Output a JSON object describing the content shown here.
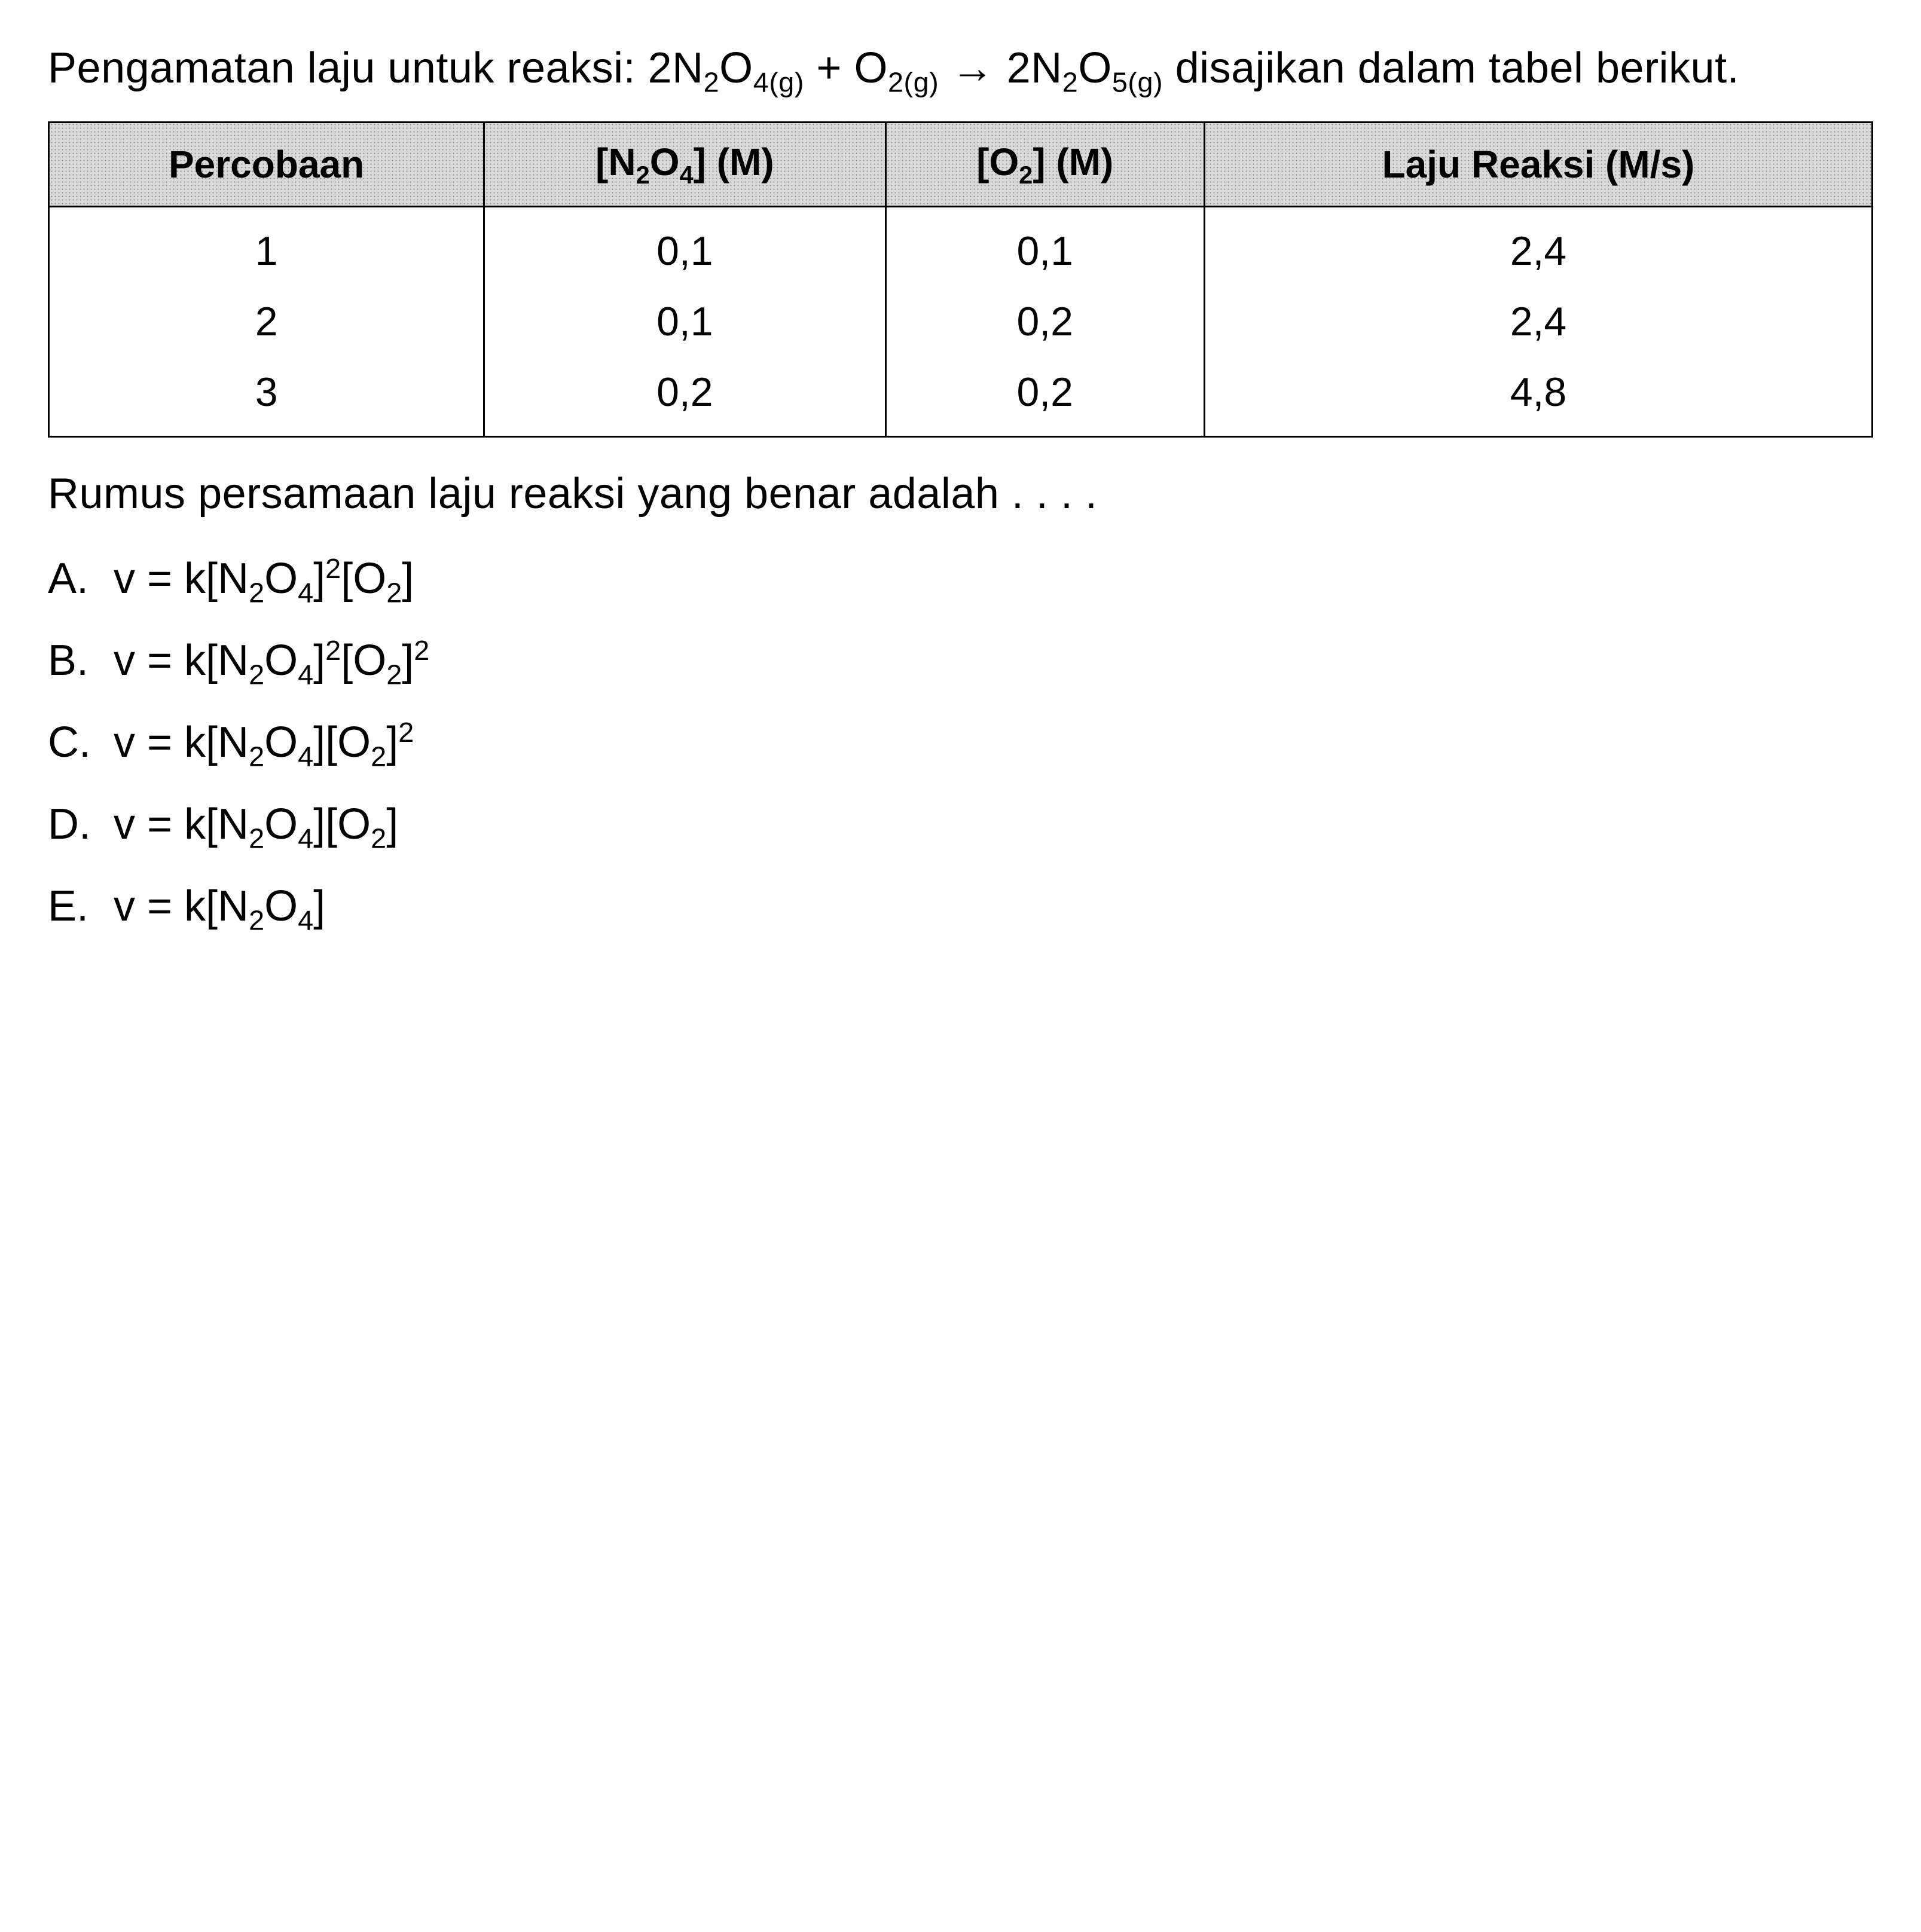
{
  "intro": {
    "line1_a": "Pengamatan laju untuk reaksi: ",
    "reactant1": "2N",
    "r1_sub1": "2",
    "r1_O": "O",
    "r1_sub2": "4(g)",
    "plus": " + ",
    "reactant2": "O",
    "r2_sub": "2(g)",
    "arrow": " → ",
    "product": "2N",
    "p_sub1": "2",
    "p_O": "O",
    "p_sub2": "5(g)",
    "line2_tail": " disajikan dalam tabel berikut."
  },
  "table": {
    "headers": {
      "col1": "Percobaan",
      "col2_a": "[N",
      "col2_s1": "2",
      "col2_b": "O",
      "col2_s2": "4",
      "col2_c": "] (M)",
      "col3_a": "[O",
      "col3_s1": "2",
      "col3_b": "] (M)",
      "col4": "Laju Reaksi (M/s)"
    },
    "rows": [
      {
        "c1": "1",
        "c2": "0,1",
        "c3": "0,1",
        "c4": "2,4"
      },
      {
        "c1": "2",
        "c2": "0,1",
        "c3": "0,2",
        "c4": "2,4"
      },
      {
        "c1": "3",
        "c2": "0,2",
        "c3": "0,2",
        "c4": "4,8"
      }
    ]
  },
  "question": "Rumus persamaan laju reaksi yang benar adalah . . . .",
  "options": {
    "A": {
      "letter": "A.",
      "pre": "v = k[N",
      "s1": "2",
      "mid1": "O",
      "s2": "4",
      "mid2": "]",
      "sup1": "2",
      "mid3": "[O",
      "s3": "2",
      "tail": "]",
      "sup2": ""
    },
    "B": {
      "letter": "B.",
      "pre": "v = k[N",
      "s1": "2",
      "mid1": "O",
      "s2": "4",
      "mid2": "]",
      "sup1": "2",
      "mid3": "[O",
      "s3": "2",
      "tail": "]",
      "sup2": "2"
    },
    "C": {
      "letter": "C.",
      "pre": "v = k[N",
      "s1": "2",
      "mid1": "O",
      "s2": "4",
      "mid2": "][O",
      "s3": "2",
      "tail": "]",
      "sup2": "2"
    },
    "D": {
      "letter": "D.",
      "pre": "v = k[N",
      "s1": "2",
      "mid1": "O",
      "s2": "4",
      "mid2": "][O",
      "s3": "2",
      "tail": "]"
    },
    "E": {
      "letter": "E.",
      "pre": "v = k[N",
      "s1": "2",
      "mid1": "O",
      "s2": "4",
      "tail": "]"
    }
  }
}
